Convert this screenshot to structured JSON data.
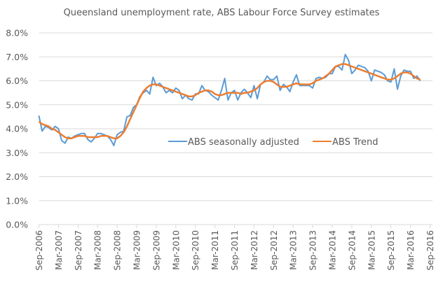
{
  "chart_data": {
    "type": "line",
    "title": "Queensland unemployment rate, ABS Labour Force Survey estimates",
    "xlabel": "",
    "ylabel": "",
    "ylim": [
      0,
      8
    ],
    "yticks": [
      "0.0%",
      "1.0%",
      "2.0%",
      "3.0%",
      "4.0%",
      "5.0%",
      "6.0%",
      "7.0%",
      "8.0%"
    ],
    "grid": true,
    "legend_position": "inside-center-right",
    "x_tick_labels": [
      "Sep-2006",
      "Mar-2007",
      "Sep-2007",
      "Mar-2008",
      "Sep-2008",
      "Mar-2009",
      "Sep-2009",
      "Mar-2010",
      "Sep-2010",
      "Mar-2011",
      "Sep-2011",
      "Mar-2012",
      "Sep-2012",
      "Mar-2013",
      "Sep-2013",
      "Mar-2014",
      "Sep-2014",
      "Mar-2015",
      "Sep-2015",
      "Mar-2016",
      "Sep-2016"
    ],
    "x_start": "Sep-2006",
    "x_end": "Sep-2016",
    "frequency": "monthly",
    "series": [
      {
        "name": "ABS seasonally adjusted",
        "color": "#5b9bd5",
        "values": [
          4.55,
          3.9,
          4.1,
          4.05,
          3.95,
          4.1,
          4.0,
          3.5,
          3.4,
          3.65,
          3.6,
          3.7,
          3.75,
          3.8,
          3.8,
          3.55,
          3.45,
          3.6,
          3.8,
          3.8,
          3.75,
          3.7,
          3.55,
          3.3,
          3.75,
          3.85,
          3.9,
          4.5,
          4.55,
          4.9,
          5.0,
          5.35,
          5.5,
          5.6,
          5.45,
          6.15,
          5.8,
          5.9,
          5.75,
          5.5,
          5.6,
          5.5,
          5.7,
          5.6,
          5.25,
          5.4,
          5.25,
          5.2,
          5.45,
          5.45,
          5.8,
          5.6,
          5.55,
          5.4,
          5.3,
          5.2,
          5.6,
          6.1,
          5.2,
          5.5,
          5.6,
          5.2,
          5.5,
          5.65,
          5.5,
          5.3,
          5.8,
          5.25,
          5.85,
          5.95,
          6.2,
          6.05,
          6.05,
          6.2,
          5.6,
          5.85,
          5.75,
          5.55,
          5.95,
          6.25,
          5.8,
          5.8,
          5.8,
          5.8,
          5.7,
          6.1,
          6.15,
          6.1,
          6.15,
          6.3,
          6.3,
          6.6,
          6.6,
          6.45,
          7.1,
          6.85,
          6.3,
          6.45,
          6.65,
          6.6,
          6.55,
          6.4,
          6.0,
          6.45,
          6.4,
          6.35,
          6.25,
          6.0,
          5.95,
          6.5,
          5.65,
          6.2,
          6.45,
          6.4,
          6.4,
          6.1,
          6.2,
          6.0
        ],
        "note": "approximately 121 monthly values read from plot, Sep-2006 to Sep-2016"
      },
      {
        "name": "ABS Trend",
        "color": "#ed7d31",
        "values": [
          4.3,
          4.2,
          4.15,
          4.1,
          4.0,
          3.95,
          3.85,
          3.75,
          3.65,
          3.6,
          3.6,
          3.65,
          3.7,
          3.7,
          3.7,
          3.65,
          3.65,
          3.65,
          3.65,
          3.7,
          3.7,
          3.7,
          3.65,
          3.6,
          3.6,
          3.7,
          3.85,
          4.1,
          4.4,
          4.7,
          5.0,
          5.3,
          5.55,
          5.7,
          5.8,
          5.85,
          5.85,
          5.8,
          5.75,
          5.7,
          5.65,
          5.6,
          5.55,
          5.5,
          5.45,
          5.4,
          5.35,
          5.35,
          5.4,
          5.5,
          5.55,
          5.6,
          5.6,
          5.55,
          5.45,
          5.4,
          5.4,
          5.45,
          5.5,
          5.5,
          5.5,
          5.5,
          5.45,
          5.5,
          5.5,
          5.55,
          5.6,
          5.7,
          5.85,
          5.95,
          6.0,
          6.0,
          5.95,
          5.85,
          5.75,
          5.75,
          5.75,
          5.8,
          5.85,
          5.9,
          5.85,
          5.85,
          5.85,
          5.85,
          5.9,
          6.0,
          6.05,
          6.1,
          6.2,
          6.3,
          6.45,
          6.6,
          6.65,
          6.7,
          6.7,
          6.65,
          6.6,
          6.55,
          6.5,
          6.45,
          6.4,
          6.35,
          6.3,
          6.25,
          6.2,
          6.15,
          6.1,
          6.05,
          6.05,
          6.1,
          6.2,
          6.3,
          6.35,
          6.35,
          6.3,
          6.2,
          6.1,
          6.05
        ],
        "note": "approximately monthly trend values read from plot"
      }
    ]
  },
  "legend": {
    "items": [
      {
        "label": "ABS seasonally adjusted",
        "color": "#5b9bd5"
      },
      {
        "label": "ABS Trend",
        "color": "#ed7d31"
      }
    ]
  }
}
